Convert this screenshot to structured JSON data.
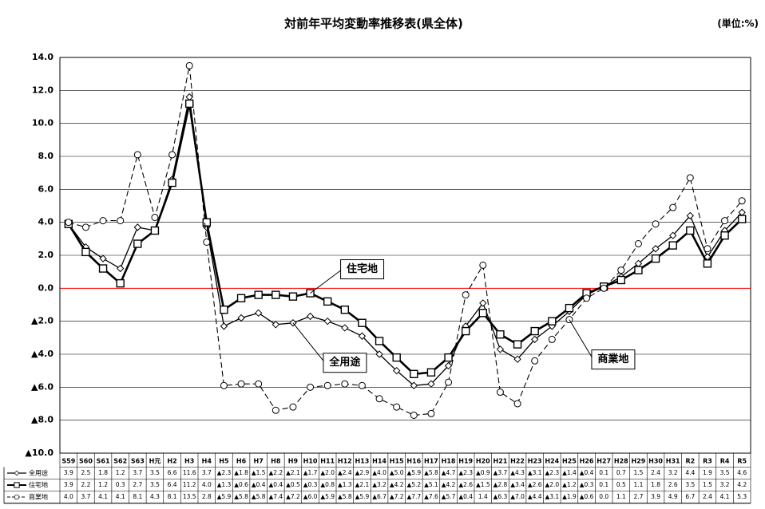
{
  "chart_data": {
    "type": "line",
    "title": "対前年平均変動率推移表(県全体)",
    "unit_label": "(単位:%)",
    "categories": [
      "S59",
      "S60",
      "S61",
      "S62",
      "S63",
      "H元",
      "H2",
      "H3",
      "H4",
      "H5",
      "H6",
      "H7",
      "H8",
      "H9",
      "H10",
      "H11",
      "H12",
      "H13",
      "H14",
      "H15",
      "H16",
      "H17",
      "H18",
      "H19",
      "H20",
      "H21",
      "H22",
      "H23",
      "H24",
      "H25",
      "H26",
      "H27",
      "H28",
      "H29",
      "H30",
      "H31",
      "R2",
      "R3",
      "R4",
      "R5"
    ],
    "series": [
      {
        "name": "全用途",
        "color": "#000000",
        "marker": "diamond",
        "dash": false,
        "width": 1.3,
        "values": [
          3.9,
          2.5,
          1.8,
          1.2,
          3.7,
          3.5,
          6.6,
          11.6,
          3.7,
          -2.3,
          -1.8,
          -1.5,
          -2.2,
          -2.1,
          -1.7,
          -2.0,
          -2.4,
          -2.9,
          -4.0,
          -5.0,
          -5.9,
          -5.8,
          -4.7,
          -2.3,
          -0.9,
          -3.7,
          -4.3,
          -3.1,
          -2.3,
          -1.4,
          -0.4,
          0.1,
          0.7,
          1.5,
          2.4,
          3.2,
          4.4,
          1.9,
          3.5,
          4.6
        ],
        "value_labels": [
          "3.9",
          "2.5",
          "1.8",
          "1.2",
          "3.7",
          "3.5",
          "6.6",
          "11.6",
          "3.7",
          "▲2.3",
          "▲1.8",
          "▲1.5",
          "▲2.2",
          "▲2.1",
          "▲1.7",
          "▲2.0",
          "▲2.4",
          "▲2.9",
          "▲4.0",
          "▲5.0",
          "▲5.9",
          "▲5.8",
          "▲4.7",
          "▲2.3",
          "▲0.9",
          "▲3.7",
          "▲4.3",
          "▲3.1",
          "▲2.3",
          "▲1.4",
          "▲0.4",
          "0.1",
          "0.7",
          "1.5",
          "2.4",
          "3.2",
          "4.4",
          "1.9",
          "3.5",
          "4.6"
        ]
      },
      {
        "name": "住宅地",
        "color": "#000000",
        "marker": "square",
        "dash": false,
        "width": 2.6,
        "values": [
          3.9,
          2.2,
          1.2,
          0.3,
          2.7,
          3.5,
          6.4,
          11.2,
          4.0,
          -1.3,
          -0.6,
          -0.4,
          -0.4,
          -0.5,
          -0.3,
          -0.8,
          -1.3,
          -2.1,
          -3.2,
          -4.2,
          -5.2,
          -5.1,
          -4.2,
          -2.6,
          -1.5,
          -2.8,
          -3.4,
          -2.6,
          -2.0,
          -1.2,
          -0.3,
          0.1,
          0.5,
          1.1,
          1.8,
          2.6,
          3.5,
          1.5,
          3.2,
          4.2
        ],
        "value_labels": [
          "3.9",
          "2.2",
          "1.2",
          "0.3",
          "2.7",
          "3.5",
          "6.4",
          "11.2",
          "4.0",
          "▲1.3",
          "▲0.6",
          "▲0.4",
          "▲0.4",
          "▲0.5",
          "▲0.3",
          "▲0.8",
          "▲1.3",
          "▲2.1",
          "▲3.2",
          "▲4.2",
          "▲5.2",
          "▲5.1",
          "▲4.2",
          "▲2.6",
          "▲1.5",
          "▲2.8",
          "▲3.4",
          "▲2.6",
          "▲2.0",
          "▲1.2",
          "▲0.3",
          "0.1",
          "0.5",
          "1.1",
          "1.8",
          "2.6",
          "3.5",
          "1.5",
          "3.2",
          "4.2"
        ]
      },
      {
        "name": "商業地",
        "color": "#000000",
        "marker": "circle",
        "dash": true,
        "width": 1.1,
        "values": [
          4.0,
          3.7,
          4.1,
          4.1,
          8.1,
          4.3,
          8.1,
          13.5,
          2.8,
          -5.9,
          -5.8,
          -5.8,
          -7.4,
          -7.2,
          -6.0,
          -5.9,
          -5.8,
          -5.9,
          -6.7,
          -7.2,
          -7.7,
          -7.6,
          -5.7,
          -0.4,
          1.4,
          -6.3,
          -7.0,
          -4.4,
          -3.1,
          -1.9,
          -0.6,
          0.0,
          1.1,
          2.7,
          3.9,
          4.9,
          6.7,
          2.4,
          4.1,
          5.3
        ],
        "value_labels": [
          "4.0",
          "3.7",
          "4.1",
          "4.1",
          "8.1",
          "4.3",
          "8.1",
          "13.5",
          "2.8",
          "▲5.9",
          "▲5.8",
          "▲5.8",
          "▲7.4",
          "▲7.2",
          "▲6.0",
          "▲5.9",
          "▲5.8",
          "▲5.9",
          "▲6.7",
          "▲7.2",
          "▲7.7",
          "▲7.6",
          "▲5.7",
          "▲0.4",
          "1.4",
          "▲6.3",
          "▲7.0",
          "▲4.4",
          "▲3.1",
          "▲1.9",
          "▲0.6",
          "0.0",
          "1.1",
          "2.7",
          "3.9",
          "4.9",
          "6.7",
          "2.4",
          "4.1",
          "5.3"
        ]
      }
    ],
    "ylim": [
      -10,
      14
    ],
    "yticks": [
      {
        "value": 14,
        "label": "14.0"
      },
      {
        "value": 12,
        "label": "12.0"
      },
      {
        "value": 10,
        "label": "10.0"
      },
      {
        "value": 8,
        "label": "8.0"
      },
      {
        "value": 6,
        "label": "6.0"
      },
      {
        "value": 4,
        "label": "4.0"
      },
      {
        "value": 2,
        "label": "2.0"
      },
      {
        "value": 0,
        "label": "0.0"
      },
      {
        "value": -2,
        "label": "▲2.0"
      },
      {
        "value": -4,
        "label": "▲4.0"
      },
      {
        "value": -6,
        "label": "▲6.0"
      },
      {
        "value": -8,
        "label": "▲8.0"
      },
      {
        "value": -10,
        "label": "▲10.0"
      }
    ],
    "grid": true,
    "zero_line_color": "#ff0000",
    "annotations": [
      {
        "text": "住宅地",
        "series": 1,
        "index": 14
      },
      {
        "text": "全用途",
        "series": 0,
        "index": 13
      },
      {
        "text": "商業地",
        "series": 2,
        "index": 29
      }
    ]
  }
}
